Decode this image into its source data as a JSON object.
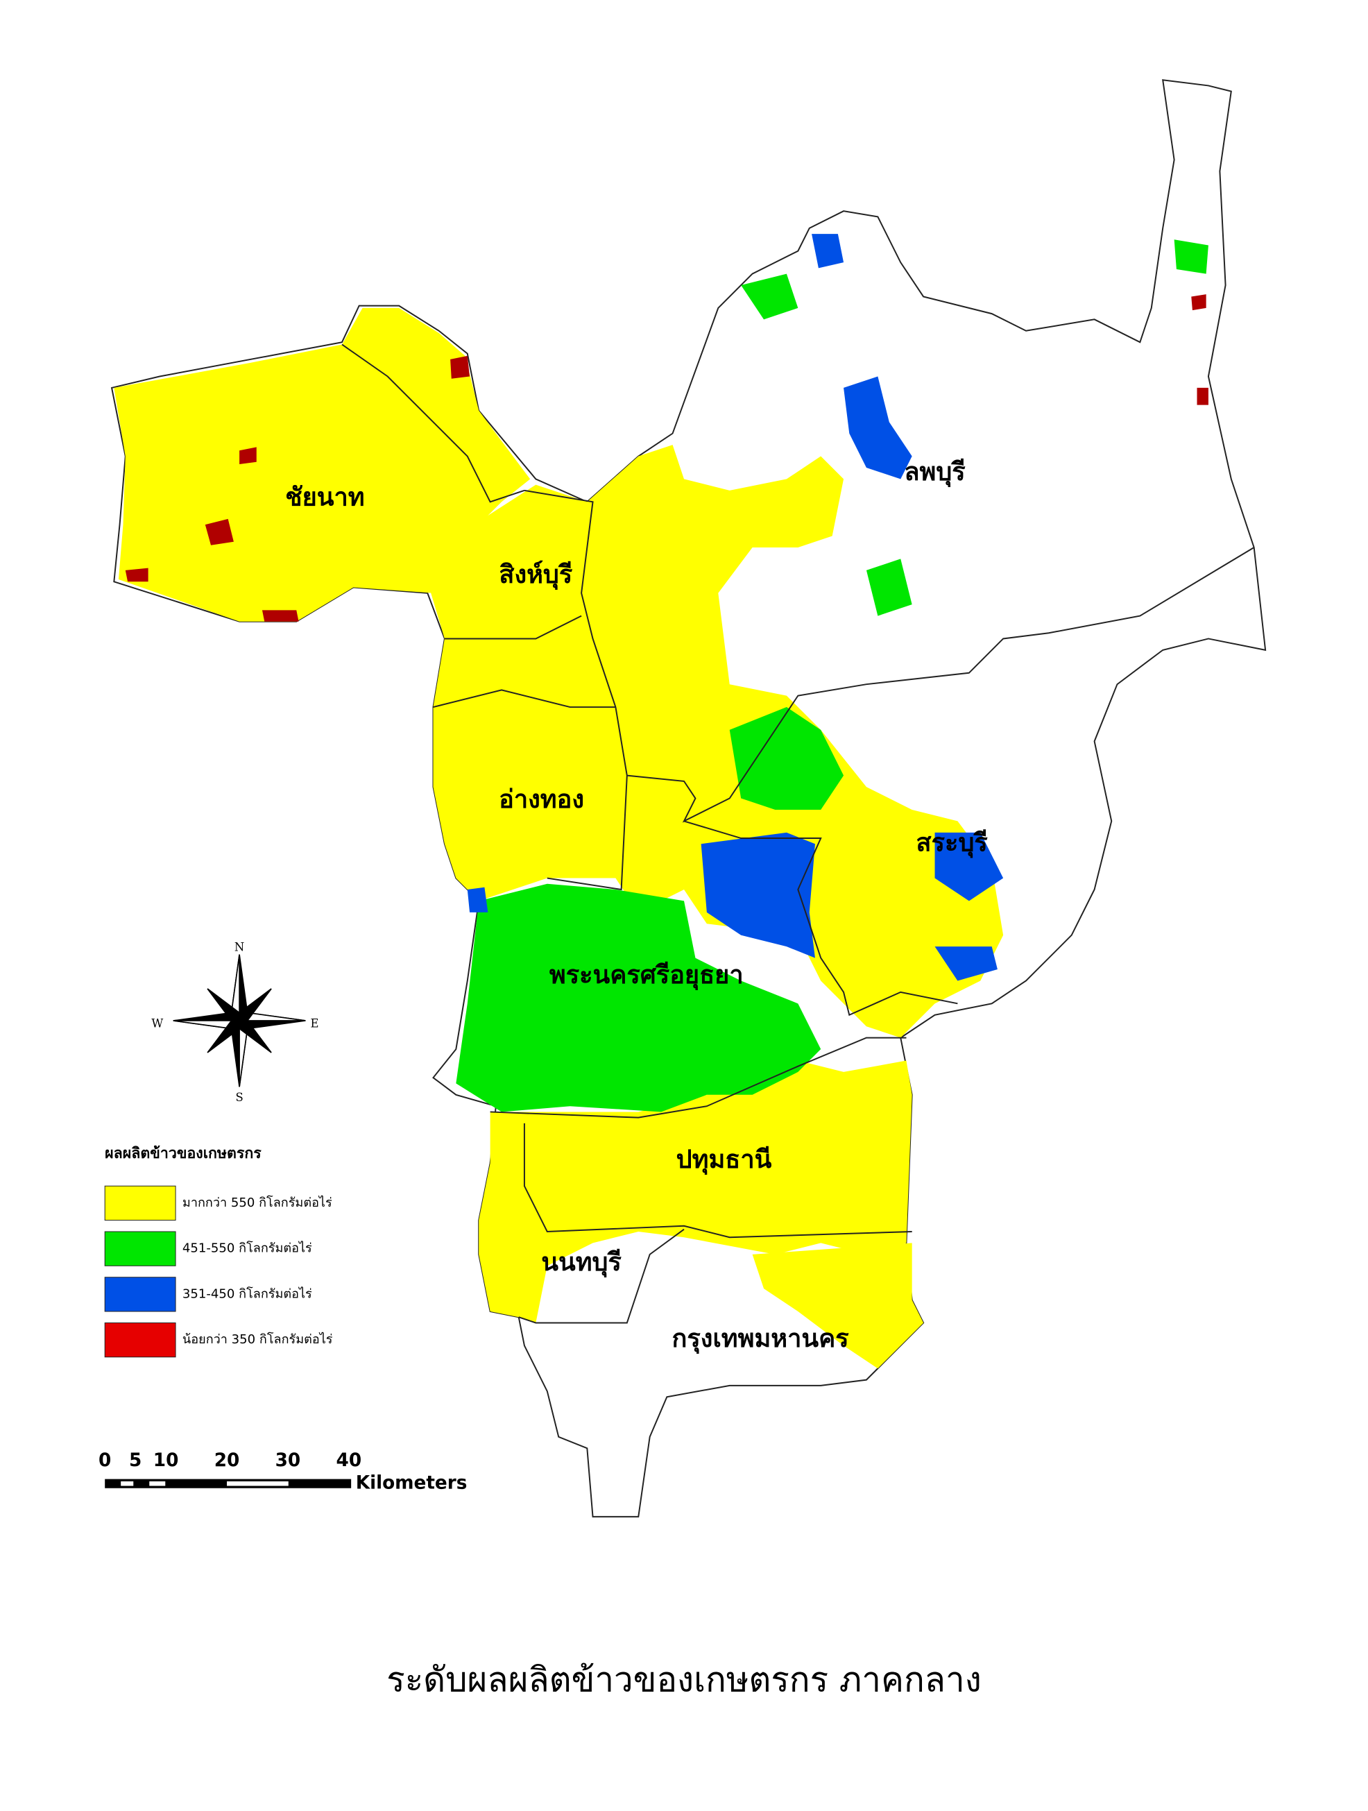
{
  "map": {
    "provinces": [
      "ชัยนาท",
      "สิงห์บุรี",
      "ลพบุรี",
      "อ่างทอง",
      "สระบุรี",
      "พระนครศรีอยุธยา",
      "ปทุมธานี",
      "นนทบุรี",
      "กรุงเทพมหานคร"
    ],
    "legend": {
      "title": "ผลผลิตข้าวของเกษตรกร",
      "items": [
        {
          "label": "มากกว่า 550 กิโลกรัมต่อไร่",
          "color": "#ffff00"
        },
        {
          "label": "451-550 กิโลกรัมต่อไร่",
          "color": "#00e600"
        },
        {
          "label": "351-450 กิโลกรัมต่อไร่",
          "color": "#0050e6"
        },
        {
          "label": "น้อยกว่า 350 กิโลกรัมต่อไร่",
          "color": "#e60000"
        }
      ]
    },
    "compass": {
      "n": "N",
      "s": "S",
      "e": "E",
      "w": "W"
    },
    "scale": {
      "ticks": [
        0,
        5,
        10,
        20,
        30,
        40
      ],
      "unit": "Kilometers"
    },
    "caption": "ระดับผลผลิตข้าวของเกษตรกร ภาคกลาง"
  }
}
